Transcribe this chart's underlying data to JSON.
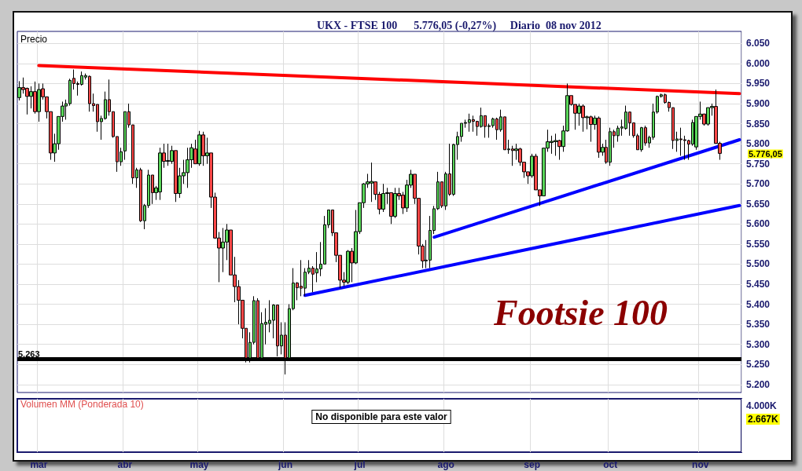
{
  "chart_data": {
    "type": "candlestick",
    "title": "UKX - FTSE 100      5.776,05 (-0,27%)     Diario  08 nov 2012",
    "ylabel": "Precio",
    "categories": [
      null,
      null,
      null,
      null,
      null,
      "mar",
      null,
      null,
      null,
      null,
      null,
      null,
      null,
      null,
      null,
      null,
      null,
      null,
      null,
      null,
      null,
      null,
      null,
      null,
      null,
      null,
      null,
      "abr",
      null,
      null,
      null,
      null,
      null,
      null,
      null,
      null,
      null,
      null,
      null,
      null,
      null,
      null,
      null,
      null,
      null,
      null,
      "may",
      null,
      null,
      null,
      null,
      null,
      null,
      null,
      null,
      null,
      null,
      null,
      null,
      null,
      null,
      null,
      null,
      null,
      null,
      null,
      null,
      null,
      "jun",
      null,
      null,
      null,
      null,
      null,
      null,
      null,
      null,
      null,
      null,
      null,
      null,
      null,
      null,
      null,
      null,
      null,
      null,
      "jul",
      null,
      null,
      null,
      null,
      null,
      null,
      null,
      null,
      null,
      null,
      null,
      null,
      null,
      null,
      null,
      null,
      null,
      null,
      null,
      null,
      null,
      "ago",
      null,
      null,
      null,
      null,
      null,
      null,
      null,
      null,
      null,
      null,
      null,
      null,
      null,
      null,
      null,
      null,
      null,
      null,
      null,
      null,
      null,
      "sep",
      null,
      null,
      null,
      null,
      null,
      null,
      null,
      null,
      null,
      null,
      null,
      null,
      null,
      null,
      null,
      null,
      null,
      null,
      null,
      "oct",
      null,
      null,
      null,
      null,
      null,
      null,
      null,
      null,
      null,
      null,
      null,
      null,
      null,
      null,
      null,
      null,
      null,
      null,
      null,
      null,
      null,
      null,
      "nov",
      null,
      null,
      null,
      null,
      null,
      null,
      null,
      null,
      null,
      null
    ],
    "ohlc": [
      [
        5915,
        5956,
        5908,
        5940
      ],
      [
        5940,
        5965,
        5925,
        5935
      ],
      [
        5938,
        5940,
        5873,
        5918
      ],
      [
        5918,
        5943,
        5888,
        5930
      ],
      [
        5930,
        5955,
        5875,
        5880
      ],
      [
        5880,
        5950,
        5855,
        5935
      ],
      [
        5937,
        5950,
        5910,
        5917
      ],
      [
        5917,
        5917,
        5863,
        5880
      ],
      [
        5880,
        5880,
        5760,
        5777
      ],
      [
        5777,
        5825,
        5755,
        5800
      ],
      [
        5800,
        5868,
        5785,
        5868
      ],
      [
        5868,
        5905,
        5855,
        5894
      ],
      [
        5894,
        5910,
        5860,
        5900
      ],
      [
        5900,
        5962,
        5895,
        5958
      ],
      [
        5963,
        5985,
        5935,
        5950
      ],
      [
        5950,
        5955,
        5920,
        5948
      ],
      [
        5948,
        5980,
        5945,
        5970
      ],
      [
        5966,
        5975,
        5960,
        5970
      ],
      [
        5968,
        5970,
        5880,
        5900
      ],
      [
        5900,
        5925,
        5880,
        5895
      ],
      [
        5898,
        5898,
        5830,
        5855
      ],
      [
        5855,
        5870,
        5810,
        5863
      ],
      [
        5863,
        5930,
        5860,
        5910
      ],
      [
        5910,
        5960,
        5870,
        5880
      ],
      [
        5880,
        5880,
        5815,
        5818
      ],
      [
        5818,
        5818,
        5730,
        5755
      ],
      [
        5755,
        5790,
        5745,
        5780
      ],
      [
        5782,
        5880,
        5760,
        5880
      ],
      [
        5880,
        5900,
        5840,
        5847
      ],
      [
        5847,
        5847,
        5700,
        5715
      ],
      [
        5715,
        5740,
        5690,
        5735
      ],
      [
        5735,
        5740,
        5605,
        5608
      ],
      [
        5608,
        5650,
        5587,
        5646
      ],
      [
        5646,
        5735,
        5640,
        5722
      ],
      [
        5722,
        5722,
        5650,
        5678
      ],
      [
        5678,
        5695,
        5660,
        5690
      ],
      [
        5680,
        5790,
        5660,
        5777
      ],
      [
        5777,
        5800,
        5740,
        5756
      ],
      [
        5756,
        5800,
        5745,
        5758
      ],
      [
        5756,
        5795,
        5750,
        5783
      ],
      [
        5783,
        5783,
        5655,
        5676
      ],
      [
        5676,
        5740,
        5665,
        5720
      ],
      [
        5720,
        5760,
        5700,
        5728
      ],
      [
        5728,
        5790,
        5690,
        5760
      ],
      [
        5760,
        5800,
        5740,
        5790
      ],
      [
        5787,
        5810,
        5750,
        5750
      ],
      [
        5750,
        5832,
        5745,
        5822
      ],
      [
        5822,
        5830,
        5745,
        5770
      ],
      [
        5770,
        5815,
        5750,
        5777
      ],
      [
        5777,
        5777,
        5640,
        5667
      ],
      [
        5667,
        5678,
        5563,
        5565
      ],
      [
        5565,
        5580,
        5455,
        5540
      ],
      [
        5540,
        5590,
        5480,
        5555
      ],
      [
        5555,
        5600,
        5510,
        5585
      ],
      [
        5585,
        5585,
        5473,
        5473
      ],
      [
        5473,
        5518,
        5405,
        5444
      ],
      [
        5444,
        5460,
        5350,
        5410
      ],
      [
        5410,
        5410,
        5315,
        5340
      ],
      [
        5340,
        5340,
        5255,
        5266
      ],
      [
        5266,
        5330,
        5255,
        5305
      ],
      [
        5305,
        5420,
        5300,
        5409
      ],
      [
        5409,
        5415,
        5262,
        5266
      ],
      [
        5266,
        5380,
        5262,
        5352
      ],
      [
        5350,
        5390,
        5300,
        5355
      ],
      [
        5352,
        5410,
        5330,
        5360
      ],
      [
        5360,
        5400,
        5315,
        5398
      ],
      [
        5398,
        5398,
        5270,
        5296
      ],
      [
        5296,
        5355,
        5275,
        5323
      ],
      [
        5323,
        5355,
        5225,
        5266
      ],
      [
        5266,
        5400,
        5262,
        5389
      ],
      [
        5389,
        5490,
        5385,
        5453
      ],
      [
        5453,
        5455,
        5410,
        5441
      ],
      [
        5445,
        5510,
        5420,
        5440
      ],
      [
        5440,
        5490,
        5420,
        5480
      ],
      [
        5480,
        5510,
        5475,
        5490
      ],
      [
        5490,
        5495,
        5430,
        5475
      ],
      [
        5478,
        5530,
        5455,
        5488
      ],
      [
        5488,
        5555,
        5470,
        5500
      ],
      [
        5500,
        5620,
        5500,
        5598
      ],
      [
        5598,
        5635,
        5590,
        5635
      ],
      [
        5635,
        5635,
        5570,
        5578
      ],
      [
        5578,
        5578,
        5505,
        5522
      ],
      [
        5522,
        5522,
        5440,
        5460
      ],
      [
        5460,
        5480,
        5445,
        5455
      ],
      [
        5455,
        5535,
        5450,
        5532
      ],
      [
        5532,
        5540,
        5455,
        5503
      ],
      [
        5503,
        5635,
        5500,
        5581
      ],
      [
        5581,
        5653,
        5575,
        5653
      ],
      [
        5653,
        5702,
        5640,
        5700
      ],
      [
        5700,
        5725,
        5690,
        5705
      ],
      [
        5702,
        5753,
        5655,
        5706
      ],
      [
        5705,
        5705,
        5660,
        5674
      ],
      [
        5674,
        5680,
        5624,
        5637
      ],
      [
        5637,
        5700,
        5630,
        5676
      ],
      [
        5676,
        5690,
        5650,
        5678
      ],
      [
        5678,
        5678,
        5600,
        5619
      ],
      [
        5619,
        5690,
        5615,
        5676
      ],
      [
        5676,
        5690,
        5660,
        5670
      ],
      [
        5672,
        5680,
        5625,
        5640
      ],
      [
        5640,
        5710,
        5630,
        5697
      ],
      [
        5697,
        5735,
        5690,
        5724
      ],
      [
        5724,
        5724,
        5650,
        5664
      ],
      [
        5664,
        5664,
        5524,
        5545
      ],
      [
        5545,
        5550,
        5490,
        5508
      ],
      [
        5508,
        5560,
        5490,
        5510
      ],
      [
        5510,
        5620,
        5490,
        5584
      ],
      [
        5584,
        5645,
        5575,
        5638
      ],
      [
        5638,
        5730,
        5635,
        5705
      ],
      [
        5705,
        5705,
        5640,
        5645
      ],
      [
        5645,
        5730,
        5635,
        5725
      ],
      [
        5725,
        5800,
        5670,
        5674
      ],
      [
        5674,
        5800,
        5670,
        5798
      ],
      [
        5798,
        5830,
        5760,
        5818
      ],
      [
        5818,
        5851,
        5805,
        5851
      ],
      [
        5851,
        5860,
        5840,
        5853
      ],
      [
        5853,
        5875,
        5830,
        5860
      ],
      [
        5860,
        5870,
        5830,
        5856
      ],
      [
        5856,
        5856,
        5820,
        5843
      ],
      [
        5843,
        5890,
        5840,
        5870
      ],
      [
        5870,
        5870,
        5815,
        5843
      ],
      [
        5843,
        5850,
        5815,
        5845
      ],
      [
        5845,
        5865,
        5840,
        5862
      ],
      [
        5862,
        5865,
        5810,
        5835
      ],
      [
        5835,
        5885,
        5830,
        5867
      ],
      [
        5867,
        5867,
        5785,
        5785
      ],
      [
        5785,
        5810,
        5775,
        5787
      ],
      [
        5787,
        5795,
        5745,
        5783
      ],
      [
        5783,
        5800,
        5760,
        5787
      ],
      [
        5787,
        5790,
        5745,
        5754
      ],
      [
        5754,
        5754,
        5715,
        5730
      ],
      [
        5730,
        5730,
        5700,
        5720
      ],
      [
        5720,
        5775,
        5715,
        5769
      ],
      [
        5769,
        5775,
        5685,
        5685
      ],
      [
        5685,
        5685,
        5645,
        5670
      ],
      [
        5670,
        5790,
        5670,
        5789
      ],
      [
        5789,
        5835,
        5780,
        5805
      ],
      [
        5803,
        5820,
        5775,
        5806
      ],
      [
        5805,
        5825,
        5770,
        5808
      ],
      [
        5808,
        5810,
        5760,
        5793
      ],
      [
        5793,
        5845,
        5780,
        5832
      ],
      [
        5832,
        5950,
        5830,
        5920
      ],
      [
        5920,
        5920,
        5895,
        5898
      ],
      [
        5898,
        5898,
        5835,
        5876
      ],
      [
        5876,
        5900,
        5845,
        5894
      ],
      [
        5894,
        5898,
        5830,
        5865
      ],
      [
        5865,
        5870,
        5836,
        5867
      ],
      [
        5867,
        5870,
        5805,
        5848
      ],
      [
        5848,
        5870,
        5835,
        5864
      ],
      [
        5864,
        5868,
        5765,
        5779
      ],
      [
        5779,
        5800,
        5770,
        5791
      ],
      [
        5791,
        5810,
        5750,
        5754
      ],
      [
        5754,
        5840,
        5745,
        5830
      ],
      [
        5830,
        5835,
        5790,
        5820
      ],
      [
        5820,
        5845,
        5805,
        5839
      ],
      [
        5839,
        5860,
        5820,
        5842
      ],
      [
        5838,
        5895,
        5835,
        5879
      ],
      [
        5879,
        5880,
        5820,
        5852
      ],
      [
        5852,
        5852,
        5815,
        5820
      ],
      [
        5820,
        5825,
        5785,
        5785
      ],
      [
        5785,
        5842,
        5780,
        5840
      ],
      [
        5840,
        5845,
        5795,
        5802
      ],
      [
        5802,
        5820,
        5790,
        5816
      ],
      [
        5816,
        5900,
        5810,
        5879
      ],
      [
        5879,
        5920,
        5875,
        5918
      ],
      [
        5918,
        5925,
        5915,
        5922
      ],
      [
        5922,
        5925,
        5900,
        5903
      ],
      [
        5903,
        5905,
        5880,
        5890
      ],
      [
        5890,
        5890,
        5787,
        5808
      ],
      [
        5808,
        5830,
        5780,
        5812
      ],
      [
        5812,
        5840,
        5770,
        5810
      ],
      [
        5810,
        5820,
        5760,
        5808
      ],
      [
        5808,
        5810,
        5760,
        5799
      ],
      [
        5799,
        5860,
        5795,
        5853
      ],
      [
        5792,
        5868,
        5785,
        5868
      ],
      [
        5868,
        5905,
        5860,
        5874
      ],
      [
        5874,
        5875,
        5845,
        5849
      ],
      [
        5849,
        5890,
        5845,
        5890
      ],
      [
        5890,
        5900,
        5870,
        5893
      ],
      [
        5893,
        5935,
        5800,
        5801
      ],
      [
        5801,
        5805,
        5760,
        5776
      ],
      null,
      null,
      null,
      null,
      null
    ],
    "series": [
      {
        "type": "line",
        "color": "#ff0000",
        "values": [
          null,
          null,
          null,
          null,
          null,
          5995,
          null,
          null,
          null,
          null,
          null,
          null,
          null,
          null,
          null,
          null,
          null,
          null,
          null,
          null,
          null,
          null,
          null,
          null,
          null,
          null,
          null,
          null,
          null,
          null,
          null,
          null,
          null,
          null,
          null,
          null,
          null,
          null,
          null,
          null,
          null,
          null,
          null,
          null,
          null,
          null,
          null,
          null,
          null,
          null,
          null,
          null,
          null,
          null,
          null,
          null,
          null,
          null,
          null,
          null,
          null,
          null,
          null,
          null,
          null,
          null,
          null,
          null,
          null,
          null,
          null,
          null,
          null,
          null,
          null,
          null,
          null,
          null,
          null,
          null,
          null,
          null,
          null,
          null,
          null,
          null,
          null,
          null,
          null,
          null,
          null,
          null,
          null,
          null,
          null,
          null,
          null,
          null,
          null,
          null,
          null,
          null,
          null,
          null,
          null,
          null,
          null,
          null,
          null,
          null,
          null,
          null,
          null,
          null,
          null,
          null,
          null,
          null,
          null,
          null,
          null,
          null,
          null,
          null,
          null,
          null,
          null,
          null,
          null,
          null,
          null,
          null,
          null,
          null,
          null,
          null,
          null,
          null,
          null,
          null,
          null,
          null,
          null,
          null,
          null,
          null,
          null,
          null,
          null,
          null,
          null,
          null,
          null,
          null,
          null,
          null,
          null,
          null,
          null,
          null,
          null,
          null,
          null,
          null,
          null,
          null,
          null,
          null,
          null,
          null,
          null,
          null,
          null,
          null,
          null,
          null,
          null,
          null,
          null,
          null,
          null,
          null,
          null,
          null,
          5925
        ]
      },
      {
        "type": "line",
        "color": "#0000ff",
        "values": [
          null,
          null,
          null,
          null,
          null,
          null,
          null,
          null,
          null,
          null,
          null,
          null,
          null,
          null,
          null,
          null,
          null,
          null,
          null,
          null,
          null,
          null,
          null,
          null,
          null,
          null,
          null,
          null,
          null,
          null,
          null,
          null,
          null,
          null,
          null,
          null,
          null,
          null,
          null,
          null,
          null,
          null,
          null,
          null,
          null,
          null,
          null,
          null,
          null,
          null,
          null,
          null,
          null,
          null,
          null,
          null,
          null,
          null,
          null,
          null,
          null,
          null,
          null,
          null,
          null,
          null,
          null,
          null,
          null,
          null,
          null,
          null,
          null,
          5422,
          null,
          null,
          null,
          null,
          null,
          null,
          null,
          null,
          null,
          null,
          null,
          null,
          null,
          null,
          null,
          null,
          null,
          null,
          null,
          null,
          null,
          null,
          null,
          null,
          null,
          null,
          null,
          null,
          null,
          null,
          null,
          null,
          null,
          null,
          null,
          null,
          null,
          null,
          null,
          null,
          null,
          null,
          null,
          null,
          null,
          null,
          null,
          null,
          null,
          null,
          null,
          null,
          null,
          null,
          null,
          null,
          null,
          null,
          null,
          null,
          null,
          null,
          null,
          null,
          null,
          null,
          null,
          null,
          null,
          null,
          null,
          null,
          null,
          null,
          null,
          null,
          null,
          null,
          null,
          null,
          null,
          null,
          null,
          null,
          null,
          null,
          null,
          null,
          null,
          null,
          null,
          null,
          null,
          null,
          null,
          null,
          null,
          null,
          null,
          null,
          null,
          null,
          null,
          null,
          null,
          null,
          null,
          null,
          null,
          null,
          5646
        ]
      },
      {
        "type": "line",
        "color": "#0000ff",
        "values": [
          null,
          null,
          null,
          null,
          null,
          null,
          null,
          null,
          null,
          null,
          null,
          null,
          null,
          null,
          null,
          null,
          null,
          null,
          null,
          null,
          null,
          null,
          null,
          null,
          null,
          null,
          null,
          null,
          null,
          null,
          null,
          null,
          null,
          null,
          null,
          null,
          null,
          null,
          null,
          null,
          null,
          null,
          null,
          null,
          null,
          null,
          null,
          null,
          null,
          null,
          null,
          null,
          null,
          null,
          null,
          null,
          null,
          null,
          null,
          null,
          null,
          null,
          null,
          null,
          null,
          null,
          null,
          null,
          null,
          null,
          null,
          null,
          null,
          null,
          null,
          null,
          null,
          null,
          null,
          null,
          null,
          null,
          null,
          null,
          null,
          null,
          null,
          null,
          null,
          null,
          null,
          null,
          null,
          null,
          null,
          null,
          null,
          null,
          null,
          null,
          null,
          null,
          null,
          null,
          null,
          null,
          5567,
          null,
          null,
          null,
          null,
          null,
          null,
          null,
          null,
          null,
          null,
          null,
          null,
          null,
          null,
          null,
          null,
          null,
          null,
          null,
          null,
          null,
          null,
          null,
          null,
          null,
          null,
          null,
          null,
          null,
          null,
          null,
          null,
          null,
          null,
          null,
          null,
          null,
          null,
          null,
          null,
          null,
          null,
          null,
          null,
          null,
          null,
          null,
          null,
          null,
          null,
          null,
          null,
          null,
          null,
          null,
          null,
          null,
          null,
          null,
          null,
          null,
          null,
          null,
          null,
          null,
          null,
          null,
          null,
          null,
          null,
          null,
          null,
          null,
          null,
          null,
          null,
          null,
          5810
        ]
      }
    ],
    "ref_lines": [
      {
        "axis": "y",
        "value": 5263,
        "label": "5.263",
        "color": "#000000"
      }
    ],
    "ylim": [
      5180,
      6080
    ],
    "yticks": [
      {
        "value": 5200,
        "label": "5.200"
      },
      {
        "value": 5250,
        "label": "5.250"
      },
      {
        "value": 5300,
        "label": "5.300"
      },
      {
        "value": 5350,
        "label": "5.350"
      },
      {
        "value": 5400,
        "label": "5.400"
      },
      {
        "value": 5450,
        "label": "5.450"
      },
      {
        "value": 5500,
        "label": "5.500"
      },
      {
        "value": 5550,
        "label": "5.550"
      },
      {
        "value": 5600,
        "label": "5.600"
      },
      {
        "value": 5650,
        "label": "5.650"
      },
      {
        "value": 5700,
        "label": "5.700"
      },
      {
        "value": 5750,
        "label": "5.750"
      },
      {
        "value": 5800,
        "label": "5.800"
      },
      {
        "value": 5850,
        "label": "5.850"
      },
      {
        "value": 5900,
        "label": "5.900"
      },
      {
        "value": 5950,
        "label": "5.950"
      },
      {
        "value": 6000,
        "label": "6.000"
      },
      {
        "value": 6050,
        "label": "6.050"
      }
    ],
    "grid": true,
    "annotations": [
      "Footsie 100",
      "5.776,05",
      "Volumen MM (Ponderada 10)",
      "No disponible para este valor",
      "4.000K",
      "2.667K"
    ]
  }
}
